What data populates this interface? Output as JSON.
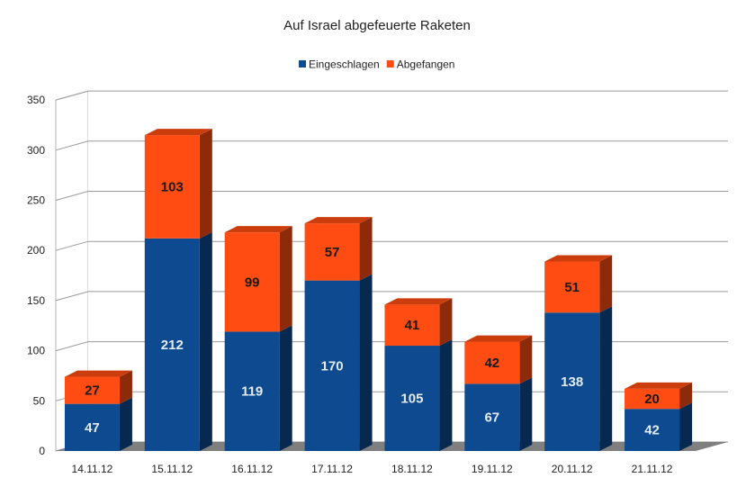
{
  "chart_data": {
    "type": "bar",
    "stacked": true,
    "title": "Auf Israel abgefeuerte Raketen",
    "categories": [
      "14.11.12",
      "15.11.12",
      "16.11.12",
      "17.11.12",
      "18.11.12",
      "19.11.12",
      "20.11.12",
      "21.11.12"
    ],
    "series": [
      {
        "name": "Eingeschlagen",
        "color": "#0d4a8f",
        "values": [
          47,
          212,
          119,
          170,
          105,
          67,
          138,
          42
        ]
      },
      {
        "name": "Abgefangen",
        "color": "#ff4c12",
        "values": [
          27,
          103,
          99,
          57,
          41,
          42,
          51,
          20
        ]
      }
    ],
    "ylim": [
      0,
      350
    ],
    "yticks": [
      0,
      50,
      100,
      150,
      200,
      250,
      300,
      350
    ],
    "grid": true,
    "legend_position": "top",
    "style": "3d"
  }
}
